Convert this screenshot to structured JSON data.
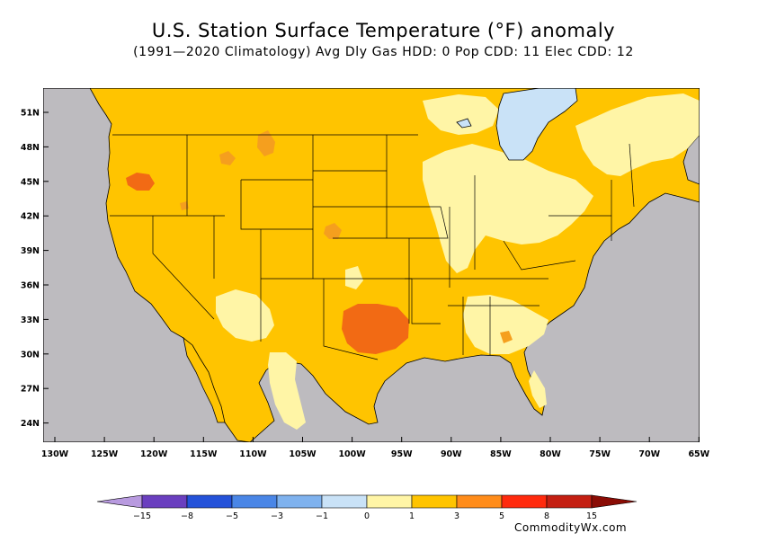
{
  "title": "U.S. Station Surface Temperature (°F) anomaly",
  "subtitle": "(1991—2020 Climatology) Avg Dly Gas HDD: 0 Pop CDD: 11 Elec CDD: 12",
  "lat_labels": [
    "51N",
    "48N",
    "45N",
    "42N",
    "39N",
    "36N",
    "33N",
    "30N",
    "27N",
    "24N"
  ],
  "lon_labels": [
    "130W",
    "125W",
    "120W",
    "115W",
    "110W",
    "105W",
    "100W",
    "95W",
    "90W",
    "85W",
    "80W",
    "75W",
    "70W",
    "65W"
  ],
  "colorbar": {
    "labels": [
      "−15",
      "−8",
      "−5",
      "−3",
      "−1",
      "0",
      "1",
      "3",
      "5",
      "8",
      "15"
    ],
    "colors": [
      "#b89adf",
      "#6a3fbf",
      "#2452d9",
      "#4a86e6",
      "#7fb2ee",
      "#c9e2f7",
      "#fff5a6",
      "#ffc400",
      "#ff8c1a",
      "#ff2a0d",
      "#c41f12",
      "#8a0c05"
    ]
  },
  "legend_colors": {
    "land_light": "#fff5a6",
    "land_base": "#ffc400",
    "land_warm": "#f59f1e",
    "land_hot": "#f26a14",
    "lake": "#c9e2f7",
    "background": "#bdbbbf"
  },
  "credit": "CommodityWx.com"
}
